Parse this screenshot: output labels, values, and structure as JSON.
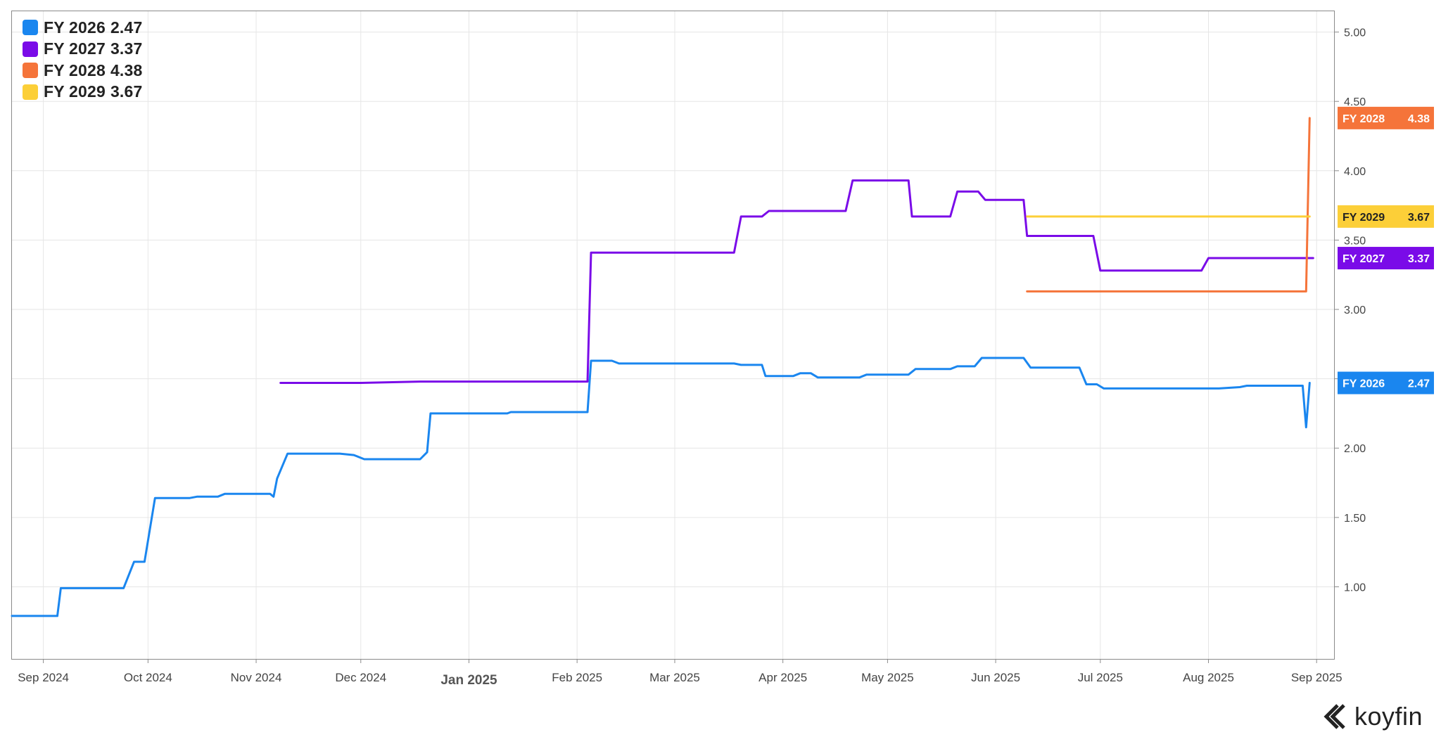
{
  "chart_data": {
    "type": "line",
    "x_type": "date",
    "xlim": [
      "2024-08-23",
      "2025-09-06"
    ],
    "ylim": [
      0.48,
      5.15
    ],
    "yticks": [
      1.0,
      1.5,
      2.0,
      2.5,
      3.0,
      3.5,
      4.0,
      4.5,
      5.0
    ],
    "ytick_labels": [
      "1.00",
      "1.50",
      "2.00",
      "2.50",
      "3.00",
      "3.50",
      "4.00",
      "4.50",
      "5.00"
    ],
    "xticks": [
      "2024-09-01",
      "2024-10-01",
      "2024-11-01",
      "2024-12-01",
      "2025-01-01",
      "2025-02-01",
      "2025-03-01",
      "2025-04-01",
      "2025-05-01",
      "2025-06-01",
      "2025-07-01",
      "2025-08-01",
      "2025-09-01"
    ],
    "xtick_labels": [
      "Sep 2024",
      "Oct 2024",
      "Nov 2024",
      "Dec 2024",
      "Jan 2025",
      "Feb 2025",
      "Mar 2025",
      "Apr 2025",
      "May 2025",
      "Jun 2025",
      "Jul 2025",
      "Aug 2025",
      "Sep 2025"
    ],
    "xtick_emphasis": "Jan 2025",
    "grid": true,
    "legend_position": "top-left",
    "series": [
      {
        "name": "FY 2026",
        "value_label": "2.47",
        "color": "#1a86ef",
        "points": [
          [
            "2024-08-23",
            0.79
          ],
          [
            "2024-09-05",
            0.79
          ],
          [
            "2024-09-06",
            0.99
          ],
          [
            "2024-09-24",
            0.99
          ],
          [
            "2024-09-27",
            1.18
          ],
          [
            "2024-09-30",
            1.18
          ],
          [
            "2024-10-03",
            1.64
          ],
          [
            "2024-10-13",
            1.64
          ],
          [
            "2024-10-15",
            1.65
          ],
          [
            "2024-10-21",
            1.65
          ],
          [
            "2024-10-23",
            1.67
          ],
          [
            "2024-11-05",
            1.67
          ],
          [
            "2024-11-06",
            1.65
          ],
          [
            "2024-11-07",
            1.78
          ],
          [
            "2024-11-10",
            1.96
          ],
          [
            "2024-11-25",
            1.96
          ],
          [
            "2024-11-29",
            1.95
          ],
          [
            "2024-12-02",
            1.92
          ],
          [
            "2024-12-18",
            1.92
          ],
          [
            "2024-12-20",
            1.97
          ],
          [
            "2024-12-21",
            2.25
          ],
          [
            "2025-01-12",
            2.25
          ],
          [
            "2025-01-13",
            2.26
          ],
          [
            "2025-02-04",
            2.26
          ],
          [
            "2025-02-05",
            2.63
          ],
          [
            "2025-02-11",
            2.63
          ],
          [
            "2025-02-13",
            2.61
          ],
          [
            "2025-03-18",
            2.61
          ],
          [
            "2025-03-20",
            2.6
          ],
          [
            "2025-03-26",
            2.6
          ],
          [
            "2025-03-27",
            2.52
          ],
          [
            "2025-04-04",
            2.52
          ],
          [
            "2025-04-06",
            2.54
          ],
          [
            "2025-04-09",
            2.54
          ],
          [
            "2025-04-11",
            2.51
          ],
          [
            "2025-04-23",
            2.51
          ],
          [
            "2025-04-25",
            2.53
          ],
          [
            "2025-05-07",
            2.53
          ],
          [
            "2025-05-09",
            2.57
          ],
          [
            "2025-05-19",
            2.57
          ],
          [
            "2025-05-21",
            2.59
          ],
          [
            "2025-05-26",
            2.59
          ],
          [
            "2025-05-28",
            2.65
          ],
          [
            "2025-06-09",
            2.65
          ],
          [
            "2025-06-11",
            2.58
          ],
          [
            "2025-06-25",
            2.58
          ],
          [
            "2025-06-27",
            2.46
          ],
          [
            "2025-06-30",
            2.46
          ],
          [
            "2025-07-02",
            2.43
          ],
          [
            "2025-08-04",
            2.43
          ],
          [
            "2025-08-10",
            2.44
          ],
          [
            "2025-08-12",
            2.45
          ],
          [
            "2025-08-28",
            2.45
          ],
          [
            "2025-08-29",
            2.15
          ],
          [
            "2025-08-30",
            2.47
          ]
        ]
      },
      {
        "name": "FY 2027",
        "value_label": "3.37",
        "color": "#7a0be8",
        "points": [
          [
            "2024-11-08",
            2.47
          ],
          [
            "2024-12-01",
            2.47
          ],
          [
            "2024-12-18",
            2.48
          ],
          [
            "2025-02-04",
            2.48
          ],
          [
            "2025-02-05",
            3.41
          ],
          [
            "2025-03-18",
            3.41
          ],
          [
            "2025-03-20",
            3.67
          ],
          [
            "2025-03-26",
            3.67
          ],
          [
            "2025-03-28",
            3.71
          ],
          [
            "2025-04-19",
            3.71
          ],
          [
            "2025-04-21",
            3.93
          ],
          [
            "2025-05-07",
            3.93
          ],
          [
            "2025-05-08",
            3.67
          ],
          [
            "2025-05-19",
            3.67
          ],
          [
            "2025-05-21",
            3.85
          ],
          [
            "2025-05-27",
            3.85
          ],
          [
            "2025-05-29",
            3.79
          ],
          [
            "2025-06-09",
            3.79
          ],
          [
            "2025-06-10",
            3.53
          ],
          [
            "2025-06-29",
            3.53
          ],
          [
            "2025-07-01",
            3.28
          ],
          [
            "2025-07-30",
            3.28
          ],
          [
            "2025-08-01",
            3.37
          ],
          [
            "2025-08-31",
            3.37
          ]
        ]
      },
      {
        "name": "FY 2028",
        "value_label": "4.38",
        "color": "#f5743a",
        "points": [
          [
            "2025-06-10",
            3.13
          ],
          [
            "2025-08-29",
            3.13
          ],
          [
            "2025-08-30",
            4.38
          ]
        ]
      },
      {
        "name": "FY 2029",
        "value_label": "3.67",
        "color": "#fccf38",
        "points": [
          [
            "2025-06-10",
            3.67
          ],
          [
            "2025-08-30",
            3.67
          ]
        ]
      }
    ]
  },
  "branding": {
    "logo_text": "koyfin"
  }
}
